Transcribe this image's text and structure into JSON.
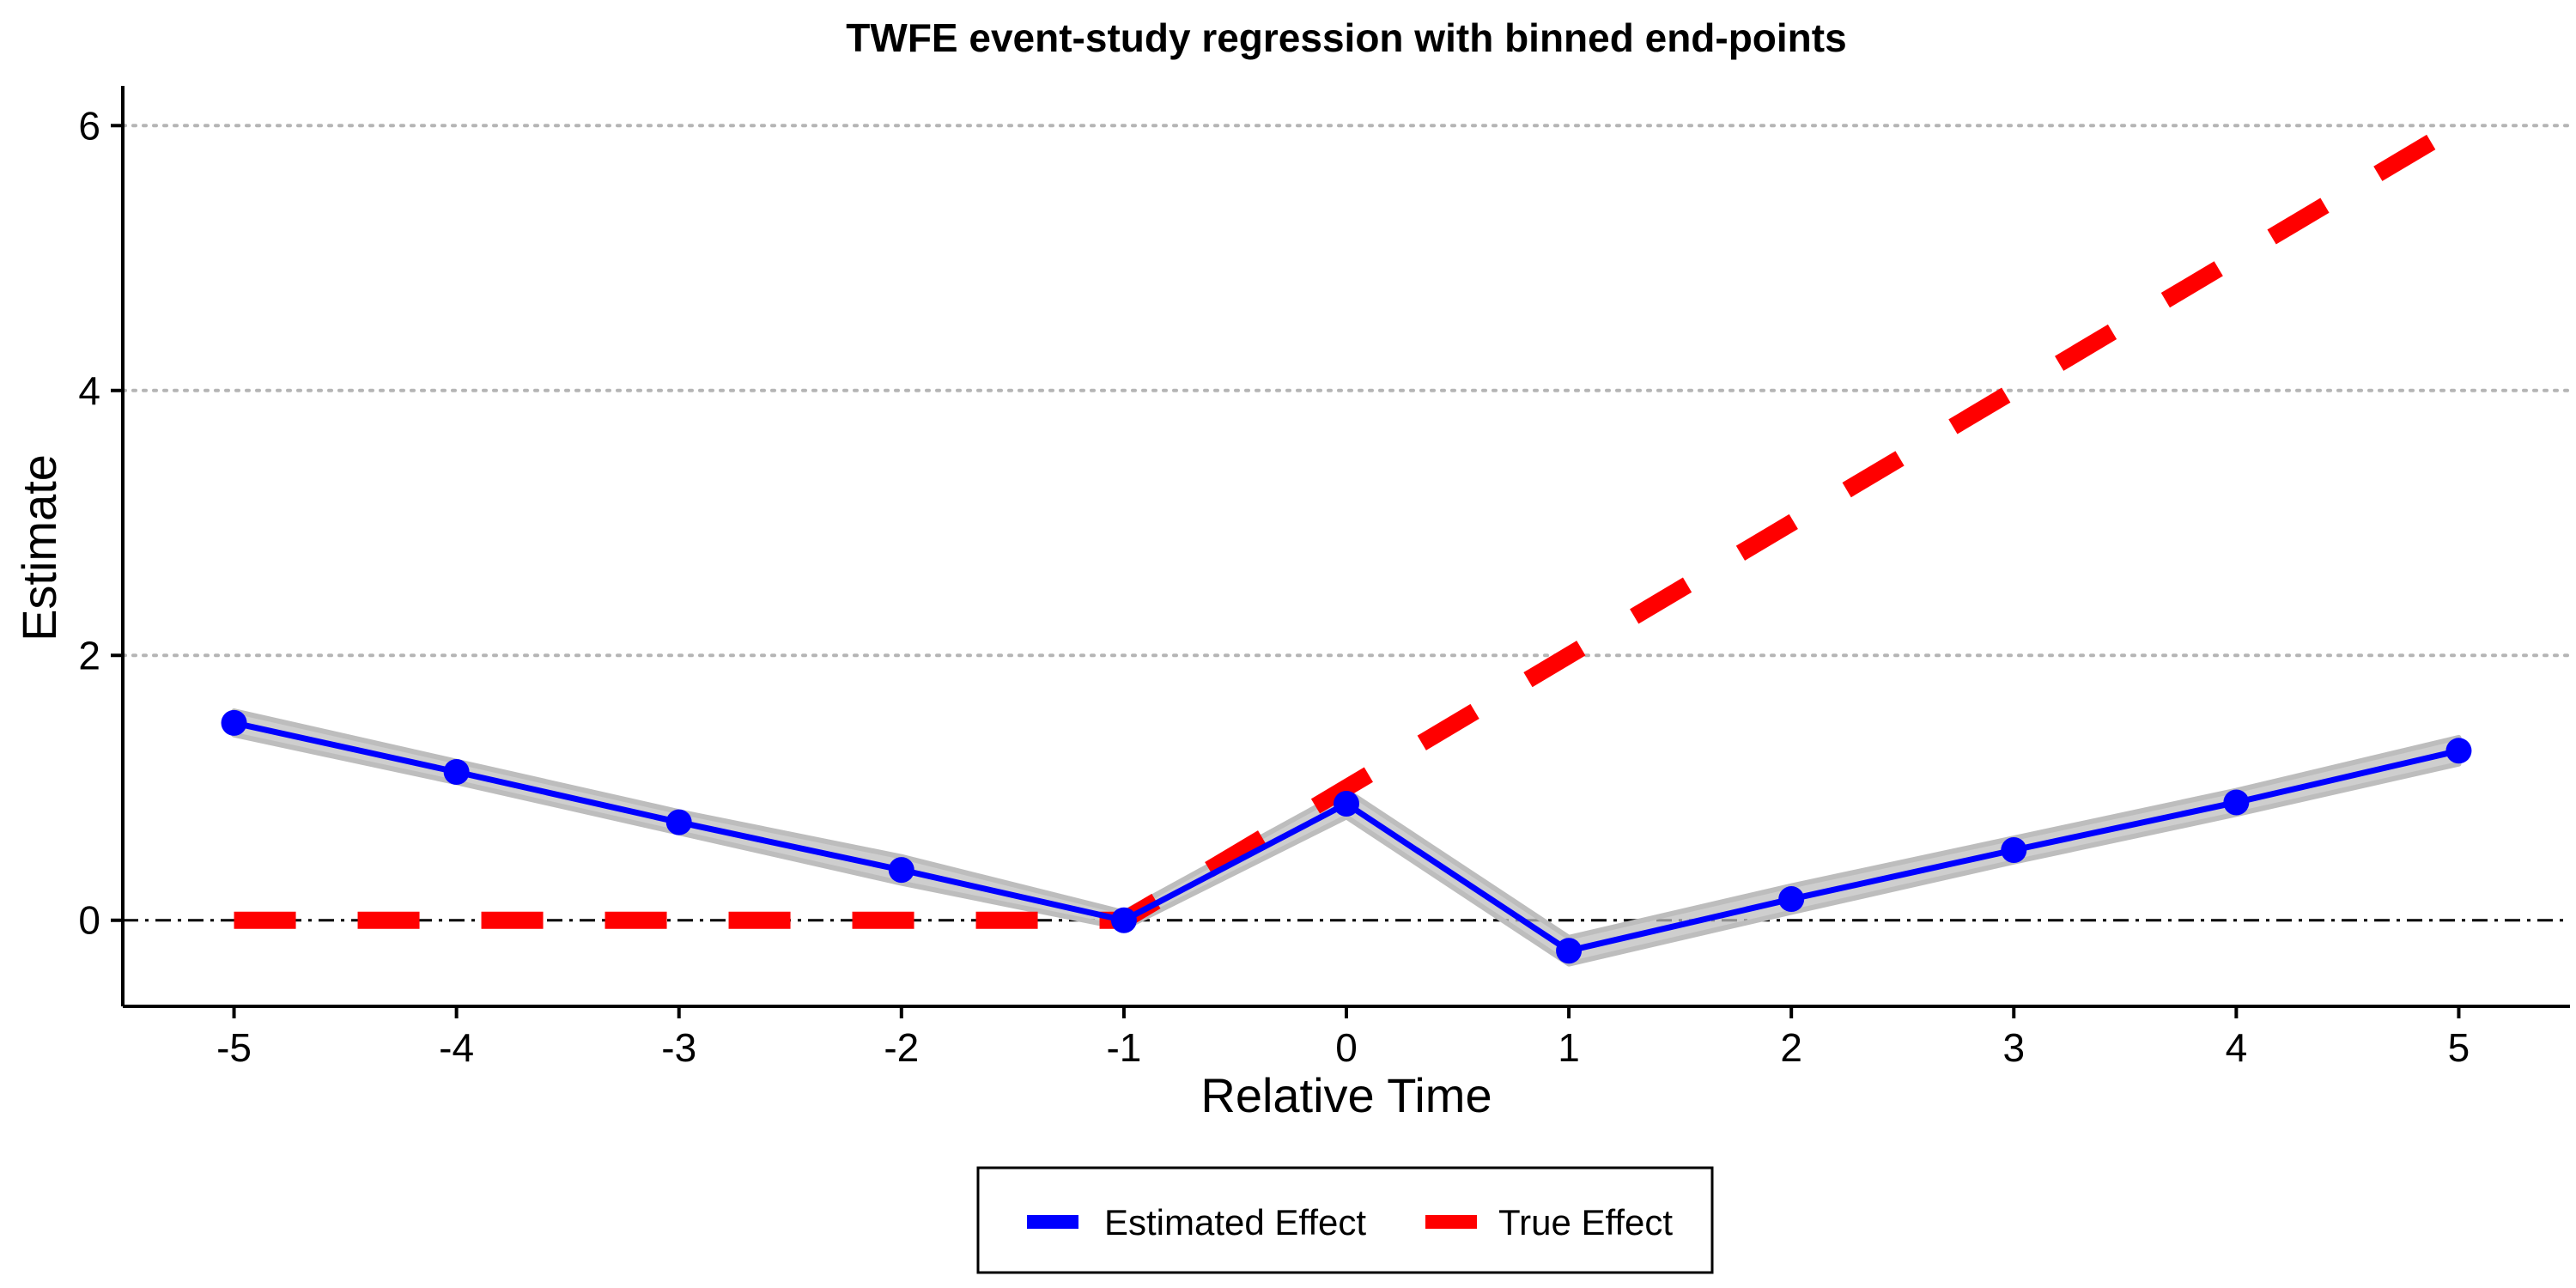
{
  "chart_data": {
    "type": "line",
    "title": "TWFE event-study regression with binned end-points",
    "xlabel": "Relative Time",
    "ylabel": "Estimate",
    "x": [
      -5,
      -4,
      -3,
      -2,
      -1,
      0,
      1,
      2,
      3,
      4,
      5
    ],
    "xlim": [
      -5.5,
      5.5
    ],
    "ylim": [
      -0.65,
      6.3
    ],
    "yticks": [
      0,
      2,
      4,
      6
    ],
    "grid": "horizontal dotted",
    "reference_line_y": 0,
    "legend_position": "bottom",
    "series": [
      {
        "name": "Estimated Effect",
        "color": "#0000ff",
        "style": "solid",
        "markers": true,
        "values": [
          1.49,
          1.12,
          0.74,
          0.38,
          0.0,
          0.88,
          -0.23,
          0.16,
          0.53,
          0.89,
          1.28
        ],
        "ci_lower": [
          1.4,
          1.04,
          0.66,
          0.28,
          -0.06,
          0.78,
          -0.33,
          0.06,
          0.44,
          0.8,
          1.18
        ],
        "ci_upper": [
          1.58,
          1.2,
          0.82,
          0.48,
          0.06,
          0.98,
          -0.13,
          0.26,
          0.62,
          0.98,
          1.38
        ]
      },
      {
        "name": "True Effect",
        "color": "#ff0000",
        "style": "dashed",
        "markers": false,
        "values": [
          0,
          0,
          0,
          0,
          0,
          1,
          2,
          3,
          4,
          5,
          6
        ]
      }
    ]
  }
}
